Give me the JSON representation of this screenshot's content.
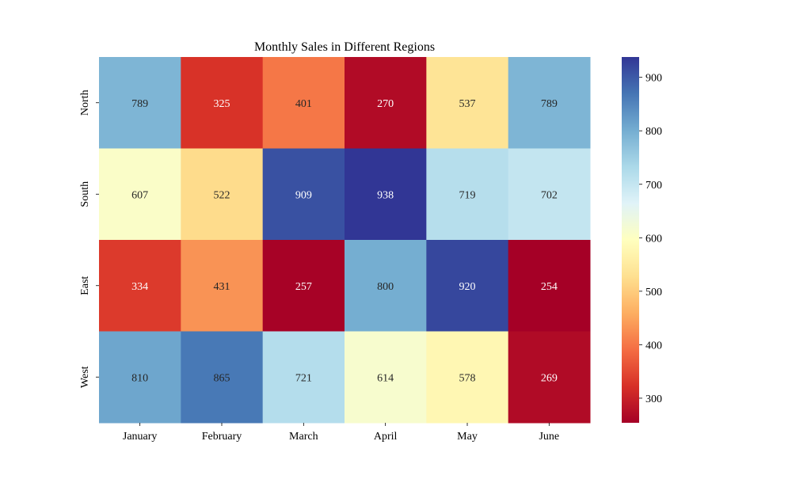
{
  "chart_data": {
    "type": "heatmap",
    "title": "Monthly Sales in Different Regions",
    "xlabel": "",
    "ylabel": "",
    "x_categories": [
      "January",
      "February",
      "March",
      "April",
      "May",
      "June"
    ],
    "y_categories": [
      "North",
      "South",
      "East",
      "West"
    ],
    "values": [
      [
        789,
        325,
        401,
        270,
        537,
        789
      ],
      [
        607,
        522,
        909,
        938,
        719,
        702
      ],
      [
        334,
        431,
        257,
        800,
        920,
        254
      ],
      [
        810,
        865,
        721,
        614,
        578,
        269
      ]
    ],
    "annotations": true,
    "colormap": "RdYlBu",
    "colorbar": {
      "range": [
        254,
        938
      ],
      "ticks": [
        300,
        400,
        500,
        600,
        700,
        800,
        900
      ]
    },
    "grid": false,
    "legend": "colorbar-right"
  }
}
